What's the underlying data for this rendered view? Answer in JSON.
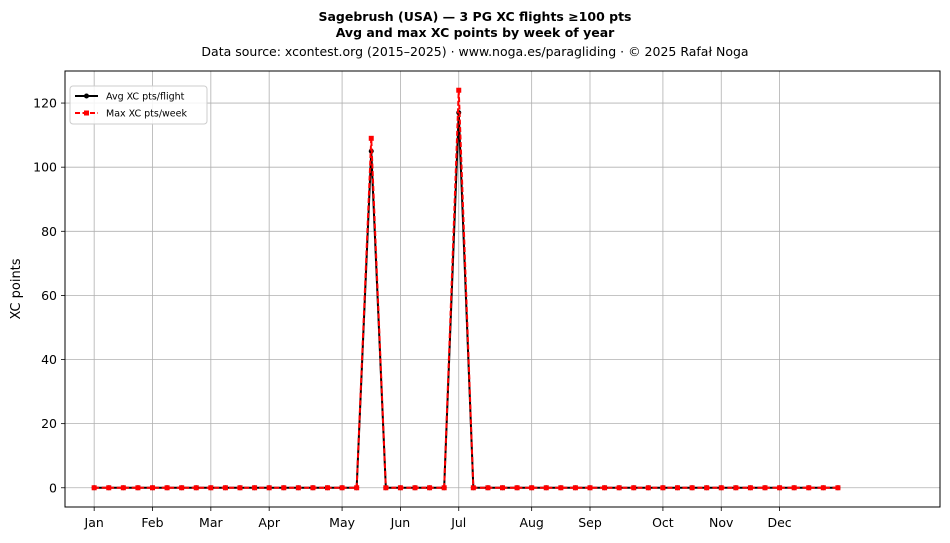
{
  "chart_data": {
    "type": "line",
    "title": "Sagebrush (USA)  —  3 PG XC flights ≥100 pts",
    "subtitle": "Avg and max XC points by week of year",
    "source_line": "Data source: xcontest.org (2015–2025)  ·  www.noga.es/paragliding  ·  © 2025 Rafał Noga",
    "xlabel": "",
    "ylabel": "XC points",
    "xlim": [
      -2,
      58
    ],
    "ylim": [
      -6,
      130
    ],
    "grid": true,
    "legend_position": "top-left",
    "x_ticks": [
      {
        "label": "Jan",
        "x": 0
      },
      {
        "label": "Feb",
        "x": 4
      },
      {
        "label": "Mar",
        "x": 8
      },
      {
        "label": "Apr",
        "x": 12
      },
      {
        "label": "May",
        "x": 17
      },
      {
        "label": "Jun",
        "x": 21
      },
      {
        "label": "Jul",
        "x": 25
      },
      {
        "label": "Aug",
        "x": 30
      },
      {
        "label": "Sep",
        "x": 34
      },
      {
        "label": "Oct",
        "x": 39
      },
      {
        "label": "Nov",
        "x": 43
      },
      {
        "label": "Dec",
        "x": 47
      }
    ],
    "y_ticks": [
      0,
      20,
      40,
      60,
      80,
      100,
      120
    ],
    "x": [
      0,
      1,
      2,
      3,
      4,
      5,
      6,
      7,
      8,
      9,
      10,
      11,
      12,
      13,
      14,
      15,
      16,
      17,
      18,
      19,
      20,
      21,
      22,
      23,
      24,
      25,
      26,
      27,
      28,
      29,
      30,
      31,
      32,
      33,
      34,
      35,
      36,
      37,
      38,
      39,
      40,
      41,
      42,
      43,
      44,
      45,
      46,
      47,
      48,
      49,
      50,
      51
    ],
    "series": [
      {
        "name": "Avg XC pts/flight",
        "color": "#000000",
        "values": [
          0,
          0,
          0,
          0,
          0,
          0,
          0,
          0,
          0,
          0,
          0,
          0,
          0,
          0,
          0,
          0,
          0,
          0,
          0,
          105,
          0,
          0,
          0,
          0,
          0,
          117,
          0,
          0,
          0,
          0,
          0,
          0,
          0,
          0,
          0,
          0,
          0,
          0,
          0,
          0,
          0,
          0,
          0,
          0,
          0,
          0,
          0,
          0,
          0,
          0,
          0,
          0
        ]
      },
      {
        "name": "Max XC pts/week",
        "color": "#ff0000",
        "values": [
          0,
          0,
          0,
          0,
          0,
          0,
          0,
          0,
          0,
          0,
          0,
          0,
          0,
          0,
          0,
          0,
          0,
          0,
          0,
          109,
          0,
          0,
          0,
          0,
          0,
          124,
          0,
          0,
          0,
          0,
          0,
          0,
          0,
          0,
          0,
          0,
          0,
          0,
          0,
          0,
          0,
          0,
          0,
          0,
          0,
          0,
          0,
          0,
          0,
          0,
          0,
          0
        ]
      }
    ]
  }
}
